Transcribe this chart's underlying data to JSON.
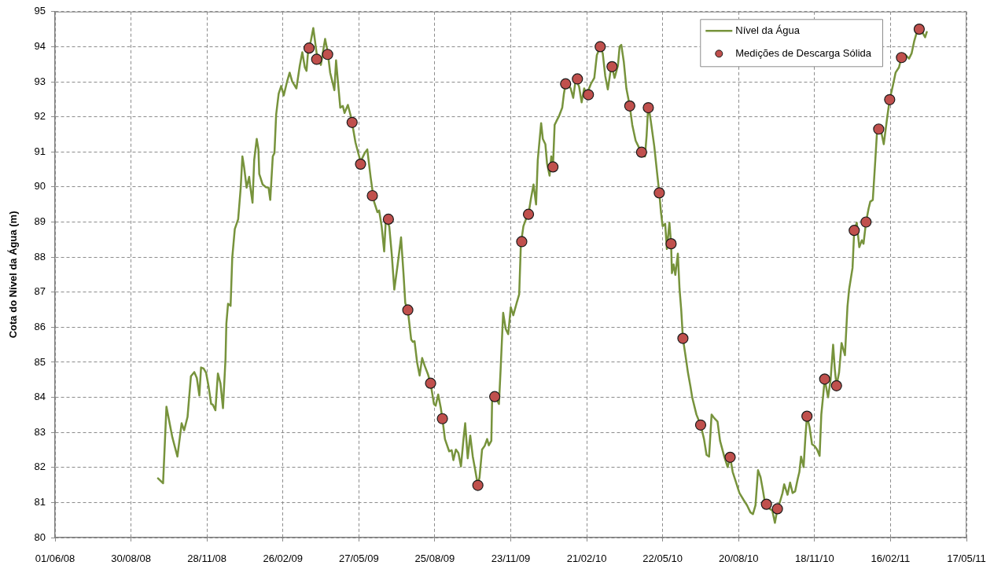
{
  "chart_data": {
    "type": "line",
    "ylabel": "Cota do Nível da Água (m)",
    "xlim": [
      "2008-06-01",
      "2011-05-17"
    ],
    "xticks": [
      {
        "value": "2008-06-01",
        "label": "01/06/08"
      },
      {
        "value": "2008-08-30",
        "label": "30/08/08"
      },
      {
        "value": "2008-11-28",
        "label": "28/11/08"
      },
      {
        "value": "2009-02-26",
        "label": "26/02/09"
      },
      {
        "value": "2009-05-27",
        "label": "27/05/09"
      },
      {
        "value": "2009-08-25",
        "label": "25/08/09"
      },
      {
        "value": "2009-11-23",
        "label": "23/11/09"
      },
      {
        "value": "2010-02-21",
        "label": "21/02/10"
      },
      {
        "value": "2010-05-22",
        "label": "22/05/10"
      },
      {
        "value": "2010-08-20",
        "label": "20/08/10"
      },
      {
        "value": "2010-11-18",
        "label": "18/11/10"
      },
      {
        "value": "2011-02-16",
        "label": "16/02/11"
      },
      {
        "value": "2011-05-17",
        "label": "17/05/11"
      }
    ],
    "ylim": [
      80,
      95
    ],
    "yticks": [
      80,
      81,
      82,
      83,
      84,
      85,
      86,
      87,
      88,
      89,
      90,
      91,
      92,
      93,
      94,
      95
    ],
    "grid": true,
    "legend": "top right",
    "series": [
      {
        "name": "Nível da Água",
        "type": "line",
        "color": "#77933c",
        "x": [
          "2008-10-01",
          "2008-10-07",
          "2008-10-11",
          "2008-10-18",
          "2008-10-24",
          "2008-10-29",
          "2008-11-01",
          "2008-11-05",
          "2008-11-09",
          "2008-11-13",
          "2008-11-16",
          "2008-11-19",
          "2008-11-21",
          "2008-11-24",
          "2008-11-27",
          "2008-11-30",
          "2008-12-03",
          "2008-12-05",
          "2008-12-08",
          "2008-12-11",
          "2008-12-14",
          "2008-12-17",
          "2008-12-20",
          "2008-12-21",
          "2008-12-23",
          "2008-12-26",
          "2008-12-28",
          "2008-12-31",
          "2009-01-04",
          "2009-01-07",
          "2009-01-09",
          "2009-01-11",
          "2009-01-14",
          "2009-01-17",
          "2009-01-18",
          "2009-01-21",
          "2009-01-23",
          "2009-01-26",
          "2009-01-28",
          "2009-01-29",
          "2009-02-02",
          "2009-02-06",
          "2009-02-09",
          "2009-02-11",
          "2009-02-14",
          "2009-02-16",
          "2009-02-18",
          "2009-02-21",
          "2009-02-24",
          "2009-02-27",
          "2009-03-03",
          "2009-03-06",
          "2009-03-09",
          "2009-03-14",
          "2009-03-18",
          "2009-03-21",
          "2009-03-24",
          "2009-03-26",
          "2009-03-28",
          "2009-03-31",
          "2009-04-03",
          "2009-04-07",
          "2009-04-10",
          "2009-04-12",
          "2009-04-17",
          "2009-04-20",
          "2009-04-23",
          "2009-04-26",
          "2009-04-28",
          "2009-04-30",
          "2009-05-02",
          "2009-05-05",
          "2009-05-08",
          "2009-05-10",
          "2009-05-14",
          "2009-05-18",
          "2009-05-23",
          "2009-05-29",
          "2009-06-03",
          "2009-06-06",
          "2009-06-10",
          "2009-06-14",
          "2009-06-18",
          "2009-06-20",
          "2009-06-23",
          "2009-06-26",
          "2009-06-28",
          "2009-07-02",
          "2009-07-05",
          "2009-07-08",
          "2009-07-12",
          "2009-07-16",
          "2009-07-19",
          "2009-07-21",
          "2009-07-24",
          "2009-07-28",
          "2009-07-30",
          "2009-08-01",
          "2009-08-04",
          "2009-08-07",
          "2009-08-10",
          "2009-08-13",
          "2009-08-17",
          "2009-08-20",
          "2009-08-24",
          "2009-08-26",
          "2009-08-29",
          "2009-09-01",
          "2009-09-03",
          "2009-09-06",
          "2009-09-11",
          "2009-09-14",
          "2009-09-16",
          "2009-09-19",
          "2009-09-22",
          "2009-09-25",
          "2009-09-28",
          "2009-09-30",
          "2009-10-03",
          "2009-10-06",
          "2009-10-09",
          "2009-10-12",
          "2009-10-15",
          "2009-10-17",
          "2009-10-20",
          "2009-10-23",
          "2009-10-26",
          "2009-10-28",
          "2009-10-31",
          "2009-11-01",
          "2009-11-04",
          "2009-11-09",
          "2009-11-11",
          "2009-11-14",
          "2009-11-17",
          "2009-11-20",
          "2009-11-23",
          "2009-11-26",
          "2009-11-30",
          "2009-12-03",
          "2009-12-05",
          "2009-12-08",
          "2009-12-11",
          "2009-12-14",
          "2009-12-17",
          "2009-12-20",
          "2009-12-23",
          "2009-12-25",
          "2009-12-29",
          "2009-12-31",
          "2010-01-03",
          "2010-01-05",
          "2010-01-08",
          "2010-01-10",
          "2010-01-12",
          "2010-01-14",
          "2010-01-16",
          "2010-01-19",
          "2010-01-23",
          "2010-01-25",
          "2010-01-27",
          "2010-01-31",
          "2010-02-02",
          "2010-02-05",
          "2010-02-08",
          "2010-02-12",
          "2010-02-15",
          "2010-02-18",
          "2010-02-21",
          "2010-02-26",
          "2010-03-02",
          "2010-03-05",
          "2010-03-09",
          "2010-03-12",
          "2010-03-15",
          "2010-03-18",
          "2010-03-21",
          "2010-03-23",
          "2010-03-26",
          "2010-03-30",
          "2010-04-01",
          "2010-04-03",
          "2010-04-06",
          "2010-04-09",
          "2010-04-13",
          "2010-04-16",
          "2010-04-20",
          "2010-04-25",
          "2010-04-27",
          "2010-05-01",
          "2010-05-03",
          "2010-05-05",
          "2010-05-08",
          "2010-05-12",
          "2010-05-16",
          "2010-05-18",
          "2010-05-20",
          "2010-05-22",
          "2010-05-25",
          "2010-05-27",
          "2010-05-30",
          "2010-06-01",
          "2010-06-02",
          "2010-06-04",
          "2010-06-06",
          "2010-06-09",
          "2010-06-11",
          "2010-06-13",
          "2010-06-15",
          "2010-06-18",
          "2010-06-21",
          "2010-06-24",
          "2010-06-26",
          "2010-07-01",
          "2010-07-06",
          "2010-07-10",
          "2010-07-13",
          "2010-07-16",
          "2010-07-19",
          "2010-07-22",
          "2010-07-26",
          "2010-07-29",
          "2010-08-03",
          "2010-08-07",
          "2010-08-10",
          "2010-08-13",
          "2010-08-17",
          "2010-08-21",
          "2010-08-26",
          "2010-08-30",
          "2010-09-03",
          "2010-09-06",
          "2010-09-09",
          "2010-09-12",
          "2010-09-15",
          "2010-09-18",
          "2010-09-20",
          "2010-09-22",
          "2010-09-26",
          "2010-09-29",
          "2010-10-02",
          "2010-10-05",
          "2010-10-08",
          "2010-10-11",
          "2010-10-13",
          "2010-10-17",
          "2010-10-20",
          "2010-10-23",
          "2010-10-26",
          "2010-10-29",
          "2010-10-31",
          "2010-11-02",
          "2010-11-05",
          "2010-11-07",
          "2010-11-09",
          "2010-11-12",
          "2010-11-15",
          "2010-11-18",
          "2010-11-21",
          "2010-11-24",
          "2010-11-26",
          "2010-11-28",
          "2010-11-30",
          "2010-12-04",
          "2010-12-07",
          "2010-12-10",
          "2010-12-12",
          "2010-12-14",
          "2010-12-17",
          "2010-12-20",
          "2010-12-24",
          "2010-12-27",
          "2010-12-29",
          "2011-01-02",
          "2011-01-04",
          "2011-01-07",
          "2011-01-10",
          "2011-01-13",
          "2011-01-15",
          "2011-01-18",
          "2011-01-21",
          "2011-01-23",
          "2011-01-26",
          "2011-01-29",
          "2011-01-31",
          "2011-02-02",
          "2011-02-05",
          "2011-02-08",
          "2011-02-12",
          "2011-02-15",
          "2011-02-19",
          "2011-02-22",
          "2011-02-26",
          "2011-03-01",
          "2011-03-05",
          "2011-03-10",
          "2011-03-13",
          "2011-03-16",
          "2011-03-19",
          "2011-03-22",
          "2011-03-26",
          "2011-03-29",
          "2011-03-31"
        ],
        "values": [
          81.69,
          81.55,
          83.73,
          82.86,
          82.31,
          83.26,
          83.06,
          83.44,
          84.6,
          84.72,
          84.55,
          84.05,
          84.85,
          84.82,
          84.7,
          84.3,
          83.81,
          83.79,
          83.63,
          84.68,
          84.4,
          83.69,
          85.1,
          86.1,
          86.67,
          86.61,
          87.99,
          88.8,
          89.08,
          89.98,
          90.87,
          90.57,
          89.98,
          90.29,
          90.07,
          89.55,
          90.77,
          91.37,
          91.07,
          90.37,
          90.07,
          89.99,
          89.98,
          89.63,
          90.87,
          90.97,
          92.06,
          92.66,
          92.88,
          92.61,
          93.01,
          93.26,
          93.01,
          92.81,
          93.46,
          93.84,
          93.41,
          93.31,
          93.91,
          94.15,
          94.53,
          93.81,
          93.61,
          93.48,
          94.22,
          93.86,
          93.26,
          92.96,
          92.76,
          93.61,
          93.06,
          92.26,
          92.31,
          92.11,
          92.34,
          91.97,
          91.27,
          90.72,
          90.97,
          91.07,
          90.27,
          89.58,
          89.28,
          89.33,
          88.88,
          88.16,
          89.08,
          88.88,
          88.08,
          87.07,
          87.79,
          88.56,
          87.49,
          86.69,
          86.49,
          85.65,
          85.58,
          85.6,
          85.0,
          84.62,
          85.12,
          84.9,
          84.65,
          84.4,
          83.81,
          83.76,
          84.08,
          83.71,
          83.39,
          82.81,
          82.46,
          82.49,
          82.21,
          82.51,
          82.41,
          82.03,
          82.81,
          83.26,
          82.26,
          82.91,
          82.31,
          81.91,
          81.49,
          81.72,
          82.51,
          82.61,
          82.81,
          82.63,
          82.76,
          84.02,
          84.05,
          83.81,
          84.8,
          86.41,
          85.95,
          85.8,
          86.57,
          86.34,
          86.69,
          86.94,
          88.38,
          88.88,
          89.08,
          89.22,
          89.68,
          90.07,
          89.5,
          90.77,
          91.82,
          91.37,
          91.22,
          90.67,
          90.32,
          90.87,
          90.57,
          91.77,
          91.87,
          92.01,
          92.26,
          92.66,
          92.94,
          92.88,
          92.81,
          92.54,
          93.08,
          92.86,
          92.41,
          92.81,
          92.64,
          92.94,
          93.11,
          93.76,
          94.0,
          93.81,
          93.16,
          92.78,
          93.26,
          93.43,
          93.11,
          93.46,
          94.0,
          94.05,
          93.56,
          92.81,
          92.31,
          91.77,
          91.32,
          91.07,
          90.99,
          90.87,
          91.47,
          92.36,
          91.87,
          91.17,
          90.27,
          89.83,
          89.28,
          88.88,
          88.95,
          88.23,
          88.98,
          88.38,
          87.54,
          87.79,
          87.49,
          88.1,
          87.09,
          86.49,
          85.68,
          85.2,
          84.7,
          84.3,
          84.0,
          83.51,
          83.21,
          82.81,
          82.36,
          82.31,
          83.51,
          83.41,
          83.31,
          82.76,
          82.31,
          82.01,
          82.29,
          81.87,
          81.57,
          81.27,
          81.07,
          80.92,
          80.72,
          80.67,
          80.92,
          81.92,
          81.72,
          81.32,
          81.02,
          80.95,
          80.82,
          80.77,
          80.42,
          80.82,
          81.02,
          81.27,
          81.52,
          81.22,
          81.57,
          81.27,
          81.32,
          81.67,
          81.87,
          82.31,
          82.01,
          82.81,
          83.46,
          83.16,
          82.66,
          82.61,
          82.51,
          82.33,
          83.51,
          84.0,
          84.52,
          84.0,
          84.5,
          85.5,
          84.8,
          84.33,
          84.7,
          85.55,
          85.2,
          86.59,
          87.09,
          87.69,
          88.76,
          88.98,
          88.28,
          88.48,
          88.38,
          89.0,
          89.38,
          89.58,
          89.63,
          90.77,
          91.57,
          91.65,
          91.57,
          91.22,
          91.97,
          92.49,
          92.91,
          93.26,
          93.41,
          93.69,
          93.78,
          93.66,
          93.81,
          94.15,
          94.4,
          94.5,
          94.4,
          94.27,
          94.42
        ]
      },
      {
        "name": "Medições de Descarga Sólida",
        "type": "scatter",
        "color": "#c0504d",
        "marker": "circle",
        "x": [
          "2009-03-29",
          "2009-04-07",
          "2009-04-20",
          "2009-05-19",
          "2009-05-29",
          "2009-06-12",
          "2009-07-01",
          "2009-07-24",
          "2009-08-20",
          "2009-09-03",
          "2009-10-15",
          "2009-11-04",
          "2009-12-06",
          "2009-12-14",
          "2010-01-12",
          "2010-01-27",
          "2010-02-10",
          "2010-02-23",
          "2010-03-09",
          "2010-03-23",
          "2010-04-13",
          "2010-04-27",
          "2010-05-05",
          "2010-05-18",
          "2010-06-01",
          "2010-06-15",
          "2010-07-06",
          "2010-08-10",
          "2010-09-22",
          "2010-10-05",
          "2010-11-09",
          "2010-11-30",
          "2010-12-14",
          "2011-01-04",
          "2011-01-18",
          "2011-02-02",
          "2011-02-15",
          "2011-03-01",
          "2011-03-22"
        ],
        "values": [
          93.96,
          93.64,
          93.78,
          91.84,
          90.65,
          89.75,
          89.08,
          86.49,
          84.4,
          83.39,
          81.49,
          84.02,
          88.44,
          89.22,
          90.57,
          92.94,
          93.08,
          92.63,
          94.0,
          93.43,
          92.31,
          90.99,
          92.26,
          89.83,
          88.38,
          85.68,
          83.21,
          82.29,
          80.95,
          80.82,
          83.46,
          84.52,
          84.33,
          88.76,
          89.0,
          91.65,
          92.49,
          93.69,
          94.5
        ]
      }
    ]
  }
}
